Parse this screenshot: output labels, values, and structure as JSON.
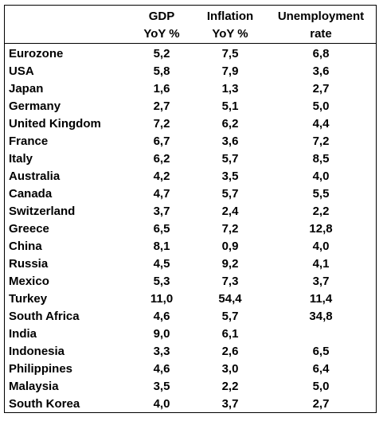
{
  "table": {
    "headers": {
      "gdp": [
        "GDP",
        "YoY %"
      ],
      "inflation": [
        "Inflation",
        "YoY %"
      ],
      "unemployment": [
        "Unemployment",
        "rate"
      ]
    },
    "rows": [
      {
        "country": "Eurozone",
        "gdp": "5,2",
        "inflation": "7,5",
        "unemployment": "6,8"
      },
      {
        "country": "USA",
        "gdp": "5,8",
        "inflation": "7,9",
        "unemployment": "3,6"
      },
      {
        "country": "Japan",
        "gdp": "1,6",
        "inflation": "1,3",
        "unemployment": "2,7"
      },
      {
        "country": "Germany",
        "gdp": "2,7",
        "inflation": "5,1",
        "unemployment": "5,0"
      },
      {
        "country": "United Kingdom",
        "gdp": "7,2",
        "inflation": "6,2",
        "unemployment": "4,4"
      },
      {
        "country": "France",
        "gdp": "6,7",
        "inflation": "3,6",
        "unemployment": "7,2"
      },
      {
        "country": "Italy",
        "gdp": "6,2",
        "inflation": "5,7",
        "unemployment": "8,5"
      },
      {
        "country": "Australia",
        "gdp": "4,2",
        "inflation": "3,5",
        "unemployment": "4,0"
      },
      {
        "country": "Canada",
        "gdp": "4,7",
        "inflation": "5,7",
        "unemployment": "5,5"
      },
      {
        "country": "Switzerland",
        "gdp": "3,7",
        "inflation": "2,4",
        "unemployment": "2,2"
      },
      {
        "country": "Greece",
        "gdp": "6,5",
        "inflation": "7,2",
        "unemployment": "12,8"
      },
      {
        "country": "China",
        "gdp": "8,1",
        "inflation": "0,9",
        "unemployment": "4,0"
      },
      {
        "country": "Russia",
        "gdp": "4,5",
        "inflation": "9,2",
        "unemployment": "4,1"
      },
      {
        "country": "Mexico",
        "gdp": "5,3",
        "inflation": "7,3",
        "unemployment": "3,7"
      },
      {
        "country": "Turkey",
        "gdp": "11,0",
        "inflation": "54,4",
        "unemployment": "11,4"
      },
      {
        "country": "South Africa",
        "gdp": "4,6",
        "inflation": "5,7",
        "unemployment": "34,8"
      },
      {
        "country": "India",
        "gdp": "9,0",
        "inflation": "6,1",
        "unemployment": ""
      },
      {
        "country": "Indonesia",
        "gdp": "3,3",
        "inflation": "2,6",
        "unemployment": "6,5"
      },
      {
        "country": "Philippines",
        "gdp": "4,6",
        "inflation": "3,0",
        "unemployment": "6,4"
      },
      {
        "country": "Malaysia",
        "gdp": "3,5",
        "inflation": "2,2",
        "unemployment": "5,0"
      },
      {
        "country": "South Korea",
        "gdp": "4,0",
        "inflation": "3,7",
        "unemployment": "2,7"
      }
    ]
  }
}
